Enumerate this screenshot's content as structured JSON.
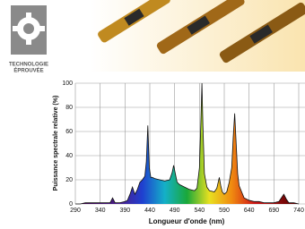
{
  "logo": {
    "line1": "TECHNOLOGIE",
    "line2": "ÉPROUVÉE"
  },
  "chart_data": {
    "type": "area",
    "x_label": "Longueur d'onde (nm)",
    "y_label": "Puissance spectrale relative (%)",
    "x": [
      290,
      300,
      310,
      320,
      330,
      340,
      350,
      360,
      365,
      370,
      380,
      390,
      395,
      400,
      405,
      410,
      415,
      420,
      425,
      430,
      433,
      436,
      439,
      442,
      445,
      450,
      460,
      470,
      480,
      485,
      488,
      491,
      495,
      500,
      510,
      520,
      530,
      535,
      540,
      543,
      545,
      547,
      550,
      555,
      560,
      570,
      575,
      580,
      583,
      586,
      590,
      595,
      600,
      605,
      608,
      611,
      614,
      617,
      620,
      625,
      630,
      640,
      650,
      660,
      670,
      680,
      690,
      700,
      705,
      710,
      715,
      720,
      730,
      740
    ],
    "values": [
      0,
      0,
      1,
      1,
      1,
      1,
      1,
      1,
      5,
      1,
      1,
      2,
      3,
      8,
      14,
      8,
      12,
      18,
      20,
      23,
      35,
      65,
      30,
      22,
      22,
      21,
      20,
      19,
      20,
      26,
      32,
      26,
      18,
      16,
      14,
      12,
      11,
      13,
      30,
      70,
      100,
      65,
      25,
      14,
      11,
      10,
      13,
      22,
      15,
      10,
      8,
      10,
      18,
      30,
      55,
      75,
      50,
      25,
      15,
      10,
      5,
      3,
      2,
      2,
      1,
      1,
      1,
      2,
      5,
      8,
      4,
      1,
      1,
      0
    ],
    "color": "#111111",
    "xlim": [
      290,
      740
    ],
    "xticks": [
      290,
      340,
      390,
      440,
      490,
      540,
      590,
      640,
      690,
      740
    ],
    "ylim": [
      0,
      100
    ],
    "yticks": [
      0,
      20,
      40,
      60,
      80,
      100
    ],
    "grid": true
  }
}
